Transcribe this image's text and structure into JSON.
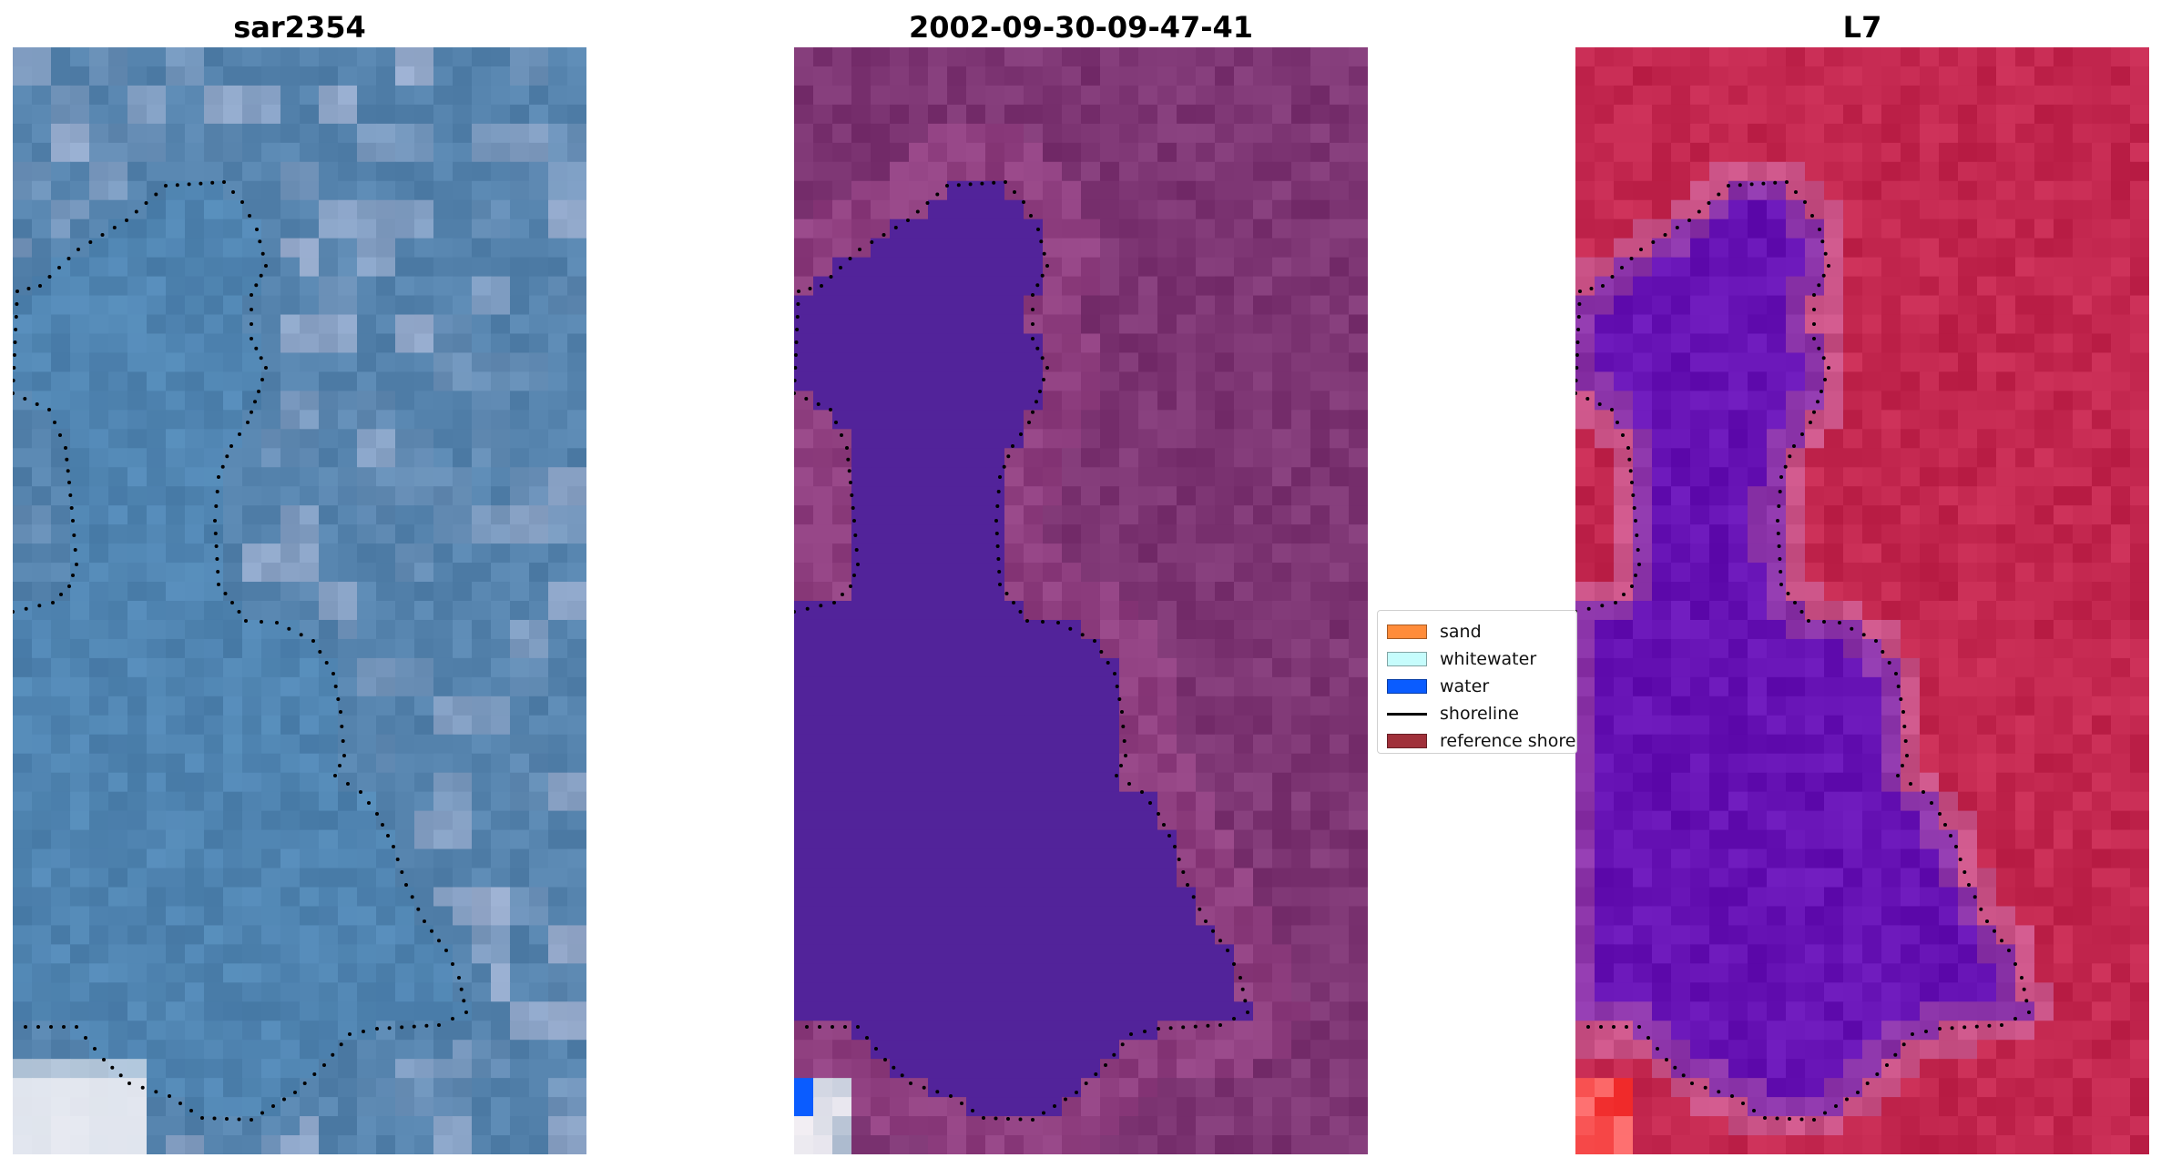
{
  "panels": [
    {
      "title": "sar2354",
      "style": "rgb"
    },
    {
      "title": "2002-09-30-09-47-41",
      "style": "classified"
    },
    {
      "title": "L7",
      "style": "falsecolor"
    }
  ],
  "legend": {
    "items": [
      {
        "label": "sand",
        "color": "#ff8c3a",
        "kind": "patch"
      },
      {
        "label": "whitewater",
        "color": "#c6fcfc",
        "kind": "patch"
      },
      {
        "label": "water",
        "color": "#0a5cff",
        "kind": "patch"
      },
      {
        "label": "shoreline",
        "color": "#000000",
        "kind": "line"
      },
      {
        "label": "reference shoreline",
        "color": "#a0303a",
        "kind": "patch"
      }
    ]
  },
  "colors": {
    "rgb_base": "#5583ad",
    "classified_land": "#7d3573",
    "classified_water": "#52239a",
    "falsecolor_land": "#c3274f",
    "falsecolor_water": "#6612b4",
    "shoreline_dots": "#000000"
  }
}
